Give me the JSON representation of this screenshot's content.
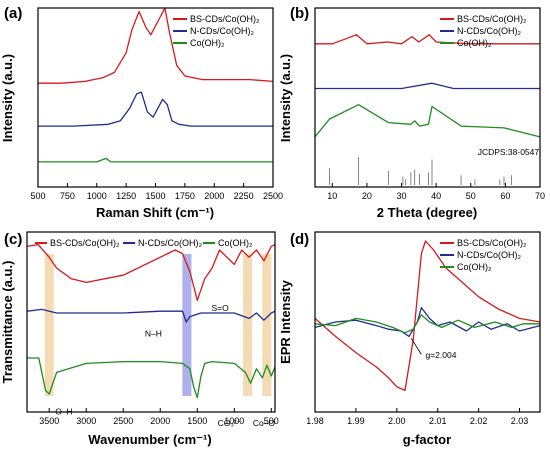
{
  "colors": {
    "red": "#d7191c",
    "blue": "#1f2f8f",
    "green": "#1e8c1e",
    "orange_band": "#f2d5a6",
    "blue_band": "#9fa3e8"
  },
  "chart_data": [
    {
      "panel": "(a)",
      "type": "line",
      "xlabel": "Raman Shift (cm⁻¹)",
      "ylabel": "Intensity (a.u.)",
      "xlim": [
        500,
        2500
      ],
      "xticks": [
        500,
        750,
        1000,
        1250,
        1500,
        1750,
        2000,
        2250,
        2500
      ],
      "legend_position": "top-right",
      "series": [
        {
          "name": "BS-CDs/Co(OH)₂",
          "color": "#d7191c",
          "x": [
            500,
            700,
            900,
            1050,
            1150,
            1250,
            1300,
            1360,
            1420,
            1460,
            1500,
            1540,
            1580,
            1620,
            1680,
            1750,
            1900,
            2100,
            2300,
            2500
          ],
          "y": [
            0.58,
            0.58,
            0.59,
            0.61,
            0.64,
            0.75,
            0.88,
            0.98,
            0.89,
            0.85,
            0.9,
            0.95,
            1.0,
            0.86,
            0.68,
            0.62,
            0.6,
            0.6,
            0.6,
            0.59
          ]
        },
        {
          "name": "N-CDs/Co(OH)₂",
          "color": "#1f2f8f",
          "x": [
            500,
            800,
            1100,
            1200,
            1280,
            1340,
            1380,
            1430,
            1480,
            1520,
            1560,
            1600,
            1640,
            1700,
            1800,
            2100,
            2500
          ],
          "y": [
            0.34,
            0.34,
            0.35,
            0.37,
            0.44,
            0.52,
            0.53,
            0.42,
            0.39,
            0.44,
            0.49,
            0.46,
            0.37,
            0.35,
            0.34,
            0.34,
            0.34
          ]
        },
        {
          "name": "Co(OH)₂",
          "color": "#1e8c1e",
          "x": [
            500,
            1000,
            1080,
            1100,
            1120,
            1500,
            2000,
            2500
          ],
          "y": [
            0.14,
            0.14,
            0.16,
            0.15,
            0.14,
            0.14,
            0.14,
            0.14
          ]
        }
      ]
    },
    {
      "panel": "(b)",
      "type": "line",
      "xlabel": "2 Theta (degree)",
      "ylabel": "Intensity (a.u.)",
      "xlim": [
        5,
        70
      ],
      "xticks": [
        10,
        20,
        30,
        40,
        50,
        60,
        70
      ],
      "legend_position": "top-right",
      "reference_label": "JCDPS:38-0547",
      "reference_peaks": {
        "x": [
          9.2,
          17.6,
          26.2,
          30.4,
          31.2,
          32.7,
          33.8,
          35.2,
          37.8,
          38.8,
          47.2,
          51.2,
          58.4,
          59.6,
          61.8
        ],
        "h": [
          0.6,
          1.0,
          0.5,
          0.3,
          0.2,
          0.45,
          0.55,
          0.4,
          0.45,
          0.9,
          0.35,
          0.2,
          0.2,
          0.3,
          0.35
        ]
      },
      "series": [
        {
          "name": "BS-CDs/Co(OH)₂",
          "color": "#d7191c",
          "x": [
            5,
            10,
            17,
            20,
            26,
            30,
            33,
            35,
            38,
            40,
            50,
            60,
            70
          ],
          "y": [
            0.8,
            0.8,
            0.85,
            0.8,
            0.81,
            0.8,
            0.84,
            0.81,
            0.85,
            0.81,
            0.8,
            0.8,
            0.8
          ]
        },
        {
          "name": "N-CDs/Co(OH)₂",
          "color": "#1f2f8f",
          "x": [
            5,
            20,
            30,
            38.8,
            45,
            60,
            70
          ],
          "y": [
            0.55,
            0.55,
            0.55,
            0.58,
            0.55,
            0.55,
            0.55
          ]
        },
        {
          "name": "Co(OH)₂",
          "color": "#1e8c1e",
          "x": [
            5,
            9.2,
            17.6,
            26.2,
            32.7,
            33.8,
            35.2,
            37.8,
            38.8,
            47.2,
            59.6,
            61.8,
            70
          ],
          "y": [
            0.28,
            0.38,
            0.46,
            0.36,
            0.35,
            0.37,
            0.34,
            0.35,
            0.45,
            0.34,
            0.33,
            0.32,
            0.28
          ]
        }
      ]
    },
    {
      "panel": "(c)",
      "type": "line",
      "xlabel": "Wavenumber (cm⁻¹)",
      "ylabel": "Transmittance (a.u.)",
      "xlim": [
        3800,
        450
      ],
      "xticks": [
        3500,
        3000,
        2500,
        2000,
        1500,
        1000,
        500
      ],
      "legend_position": "top",
      "annotations": [
        "O–H",
        "N–H",
        "S=O",
        "CO₃²⁻",
        "Co–O"
      ],
      "bands": [
        {
          "center": 3500,
          "color": "orange"
        },
        {
          "center": 1640,
          "color": "blue"
        },
        {
          "center": 820,
          "color": "orange"
        },
        {
          "center": 560,
          "color": "orange"
        }
      ],
      "series": [
        {
          "name": "BS-CDs/Co(OH)₂",
          "color": "#d7191c",
          "x": [
            3800,
            3650,
            3500,
            3400,
            3200,
            3000,
            2500,
            2000,
            1800,
            1700,
            1600,
            1500,
            1450,
            1400,
            1300,
            1200,
            1100,
            1000,
            900,
            800,
            700,
            600,
            500,
            450
          ],
          "y": [
            0.92,
            0.93,
            0.86,
            0.8,
            0.74,
            0.72,
            0.76,
            0.86,
            0.9,
            0.88,
            0.78,
            0.62,
            0.68,
            0.74,
            0.8,
            0.9,
            0.86,
            0.82,
            0.9,
            0.86,
            0.9,
            0.84,
            0.92,
            0.93
          ]
        },
        {
          "name": "N-CDs/Co(OH)₂",
          "color": "#1f2f8f",
          "x": [
            3800,
            3600,
            3400,
            3000,
            2500,
            2000,
            1700,
            1650,
            1600,
            1450,
            1300,
            1000,
            800,
            700,
            600,
            500,
            450
          ],
          "y": [
            0.56,
            0.57,
            0.55,
            0.55,
            0.55,
            0.56,
            0.56,
            0.5,
            0.53,
            0.55,
            0.55,
            0.55,
            0.52,
            0.55,
            0.51,
            0.55,
            0.56
          ]
        },
        {
          "name": "Co(OH)₂",
          "color": "#1e8c1e",
          "x": [
            3800,
            3640,
            3600,
            3550,
            3500,
            3450,
            3400,
            3000,
            2500,
            2000,
            1700,
            1600,
            1550,
            1500,
            1450,
            1400,
            1300,
            1000,
            850,
            780,
            700,
            620,
            560,
            500,
            450
          ],
          "y": [
            0.3,
            0.3,
            0.22,
            0.12,
            0.1,
            0.16,
            0.22,
            0.27,
            0.28,
            0.28,
            0.27,
            0.24,
            0.14,
            0.08,
            0.2,
            0.27,
            0.28,
            0.27,
            0.22,
            0.16,
            0.24,
            0.19,
            0.26,
            0.2,
            0.25
          ]
        }
      ]
    },
    {
      "panel": "(d)",
      "type": "line",
      "xlabel": "g-factor",
      "ylabel": "EPR Intensity",
      "xlim": [
        1.98,
        2.035
      ],
      "xticks": [
        1.98,
        1.99,
        2.0,
        2.01,
        2.02,
        2.03
      ],
      "legend_position": "top-right",
      "annotations": [
        "g=2.004"
      ],
      "series": [
        {
          "name": "BS-CDs/Co(OH)₂",
          "color": "#d7191c",
          "x": [
            1.98,
            1.985,
            1.99,
            1.995,
            1.998,
            2.0,
            2.002,
            2.004,
            2.006,
            2.007,
            2.009,
            2.012,
            2.016,
            2.02,
            2.025,
            2.03,
            2.035
          ],
          "y": [
            0.52,
            0.42,
            0.33,
            0.25,
            0.19,
            0.14,
            0.12,
            0.4,
            0.88,
            0.95,
            0.9,
            0.8,
            0.72,
            0.64,
            0.57,
            0.52,
            0.5
          ]
        },
        {
          "name": "N-CDs/Co(OH)₂",
          "color": "#1f2f8f",
          "x": [
            1.98,
            1.985,
            1.99,
            1.995,
            1.998,
            2.001,
            2.003,
            2.005,
            2.006,
            2.008,
            2.01,
            2.013,
            2.017,
            2.02,
            2.023,
            2.027,
            2.03,
            2.035
          ],
          "y": [
            0.47,
            0.5,
            0.51,
            0.48,
            0.46,
            0.45,
            0.42,
            0.5,
            0.58,
            0.52,
            0.48,
            0.5,
            0.45,
            0.5,
            0.46,
            0.49,
            0.45,
            0.48
          ]
        },
        {
          "name": "Co(OH)₂",
          "color": "#1e8c1e",
          "x": [
            1.98,
            1.985,
            1.99,
            1.995,
            1.999,
            2.002,
            2.004,
            2.006,
            2.008,
            2.011,
            2.015,
            2.019,
            2.024,
            2.028,
            2.031,
            2.035
          ],
          "y": [
            0.49,
            0.48,
            0.52,
            0.5,
            0.47,
            0.44,
            0.46,
            0.54,
            0.5,
            0.47,
            0.51,
            0.47,
            0.5,
            0.47,
            0.49,
            0.49
          ]
        }
      ]
    }
  ]
}
